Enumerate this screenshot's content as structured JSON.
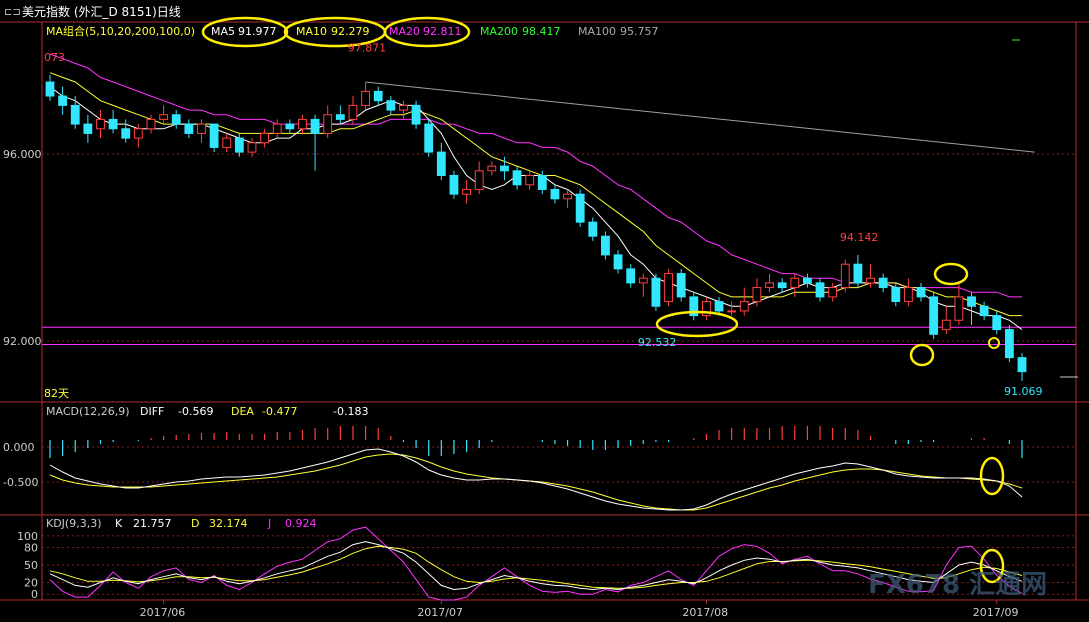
{
  "header": {
    "title": "美元指数 (外汇_D 8151)日线",
    "ma_label": "MA组合(5,10,20,200,100,0)",
    "ma_items": [
      {
        "name": "MA5",
        "value": "91.977",
        "color": "#ffffff"
      },
      {
        "name": "MA10",
        "value": "92.279",
        "color": "#ffff33"
      },
      {
        "name": "MA20",
        "value": "92.811",
        "color": "#ff33ff"
      },
      {
        "name": "MA200",
        "value": "98.417",
        "color": "#33ff33"
      },
      {
        "name": "MA100",
        "value": "95.757",
        "color": "#aaaaaa"
      }
    ]
  },
  "colors": {
    "up": "#ff4040",
    "down": "#33e6ff",
    "grid": "#8b1a1a",
    "ma5": "#ffffff",
    "ma10": "#ffff33",
    "ma20": "#ff33ff",
    "ma100": "#a0a0a0",
    "highlight": "#ffee00",
    "watermark": "#406080"
  },
  "chart_data": {
    "type": "candlestick",
    "ylim": [
      90.6,
      98.2
    ],
    "yticks": [
      {
        "value": 96.0,
        "label": "96.000"
      },
      {
        "value": 92.0,
        "label": "92.000"
      }
    ],
    "xticks": [
      {
        "index": 9,
        "label": "2017/06"
      },
      {
        "index": 31,
        "label": "2017/07"
      },
      {
        "index": 52,
        "label": "2017/08"
      },
      {
        "index": 75,
        "label": "2017/09"
      }
    ],
    "candles": [
      [
        97.3,
        97.0,
        97.45,
        96.9
      ],
      [
        97.0,
        96.8,
        97.2,
        96.6
      ],
      [
        96.8,
        96.4,
        97.0,
        96.3
      ],
      [
        96.4,
        96.2,
        96.6,
        96.0
      ],
      [
        96.3,
        96.5,
        96.7,
        96.1
      ],
      [
        96.5,
        96.3,
        96.7,
        96.2
      ],
      [
        96.3,
        96.1,
        96.5,
        96.0
      ],
      [
        96.1,
        96.3,
        96.4,
        95.9
      ],
      [
        96.3,
        96.5,
        96.6,
        96.2
      ],
      [
        96.5,
        96.6,
        96.8,
        96.4
      ],
      [
        96.6,
        96.4,
        96.7,
        96.3
      ],
      [
        96.4,
        96.2,
        96.5,
        96.1
      ],
      [
        96.2,
        96.4,
        96.5,
        96.0
      ],
      [
        96.4,
        95.9,
        96.4,
        95.8
      ],
      [
        95.9,
        96.1,
        96.2,
        95.8
      ],
      [
        96.1,
        95.8,
        96.2,
        95.7
      ],
      [
        95.8,
        96.0,
        96.1,
        95.7
      ],
      [
        96.0,
        96.2,
        96.3,
        95.9
      ],
      [
        96.2,
        96.4,
        96.5,
        96.1
      ],
      [
        96.4,
        96.3,
        96.5,
        96.2
      ],
      [
        96.3,
        96.5,
        96.6,
        96.2
      ],
      [
        96.5,
        96.2,
        96.6,
        95.4
      ],
      [
        96.2,
        96.6,
        96.8,
        96.1
      ],
      [
        96.6,
        96.5,
        96.8,
        96.4
      ],
      [
        96.5,
        96.8,
        97.0,
        96.4
      ],
      [
        96.8,
        97.1,
        97.3,
        96.7
      ],
      [
        97.1,
        96.9,
        97.2,
        96.8
      ],
      [
        96.9,
        96.7,
        97.0,
        96.6
      ],
      [
        96.7,
        96.8,
        96.9,
        96.5
      ],
      [
        96.8,
        96.4,
        96.9,
        96.3
      ],
      [
        96.4,
        95.8,
        96.5,
        95.7
      ],
      [
        95.8,
        95.3,
        96.0,
        95.2
      ],
      [
        95.3,
        94.9,
        95.4,
        94.8
      ],
      [
        94.9,
        95.0,
        95.2,
        94.7
      ],
      [
        95.0,
        95.4,
        95.6,
        94.9
      ],
      [
        95.4,
        95.5,
        95.6,
        95.3
      ],
      [
        95.5,
        95.4,
        95.7,
        95.2
      ],
      [
        95.4,
        95.1,
        95.5,
        95.0
      ],
      [
        95.1,
        95.3,
        95.4,
        95.0
      ],
      [
        95.3,
        95.0,
        95.4,
        94.9
      ],
      [
        95.0,
        94.8,
        95.1,
        94.7
      ],
      [
        94.8,
        94.9,
        95.0,
        94.6
      ],
      [
        94.9,
        94.3,
        95.0,
        94.2
      ],
      [
        94.3,
        94.0,
        94.4,
        93.9
      ],
      [
        94.0,
        93.6,
        94.1,
        93.5
      ],
      [
        93.6,
        93.3,
        93.7,
        93.2
      ],
      [
        93.3,
        93.0,
        93.4,
        92.9
      ],
      [
        93.0,
        93.1,
        93.2,
        92.7
      ],
      [
        93.1,
        92.5,
        93.2,
        92.4
      ],
      [
        92.6,
        93.2,
        93.3,
        92.5
      ],
      [
        93.2,
        92.7,
        93.3,
        92.6
      ],
      [
        92.7,
        92.3,
        92.8,
        92.2
      ],
      [
        92.3,
        92.6,
        92.7,
        92.2
      ],
      [
        92.6,
        92.4,
        92.7,
        92.3
      ],
      [
        92.4,
        92.4,
        92.6,
        92.3
      ],
      [
        92.4,
        92.6,
        92.9,
        92.3
      ],
      [
        92.6,
        92.9,
        93.1,
        92.5
      ],
      [
        92.9,
        93.0,
        93.2,
        92.8
      ],
      [
        93.0,
        92.9,
        93.1,
        92.8
      ],
      [
        92.9,
        93.1,
        93.2,
        92.7
      ],
      [
        93.1,
        93.0,
        93.2,
        92.9
      ],
      [
        93.0,
        92.7,
        93.1,
        92.6
      ],
      [
        92.7,
        92.9,
        93.0,
        92.6
      ],
      [
        92.9,
        93.4,
        93.5,
        92.8
      ],
      [
        93.4,
        93.0,
        93.6,
        92.9
      ],
      [
        93.0,
        93.1,
        93.4,
        92.9
      ],
      [
        93.1,
        92.9,
        93.2,
        92.8
      ],
      [
        92.9,
        92.6,
        93.0,
        92.5
      ],
      [
        92.6,
        92.9,
        93.1,
        92.5
      ],
      [
        92.9,
        92.7,
        93.0,
        92.6
      ],
      [
        92.7,
        91.9,
        92.8,
        91.8
      ],
      [
        92.0,
        92.2,
        92.5,
        91.9
      ],
      [
        92.2,
        92.7,
        93.0,
        92.1
      ],
      [
        92.7,
        92.5,
        92.8,
        92.1
      ],
      [
        92.5,
        92.3,
        92.6,
        92.2
      ],
      [
        92.3,
        92.0,
        92.4,
        91.9
      ],
      [
        92.0,
        91.4,
        92.1,
        91.3
      ],
      [
        91.4,
        91.1,
        91.5,
        90.9
      ]
    ],
    "ma5": [
      97.2,
      97.0,
      96.9,
      96.7,
      96.5,
      96.4,
      96.4,
      96.3,
      96.3,
      96.3,
      96.4,
      96.4,
      96.4,
      96.3,
      96.2,
      96.1,
      96.0,
      96.0,
      96.1,
      96.1,
      96.3,
      96.3,
      96.4,
      96.4,
      96.5,
      96.7,
      96.8,
      96.9,
      96.8,
      96.8,
      96.5,
      96.2,
      95.7,
      95.3,
      95.1,
      95.0,
      95.1,
      95.3,
      95.3,
      95.3,
      95.1,
      95.0,
      94.8,
      94.6,
      94.3,
      94.0,
      93.6,
      93.4,
      93.1,
      93.0,
      92.9,
      92.8,
      92.7,
      92.6,
      92.5,
      92.5,
      92.6,
      92.7,
      92.8,
      92.9,
      93.0,
      92.9,
      92.9,
      93.0,
      93.0,
      93.0,
      93.0,
      92.9,
      92.9,
      92.8,
      92.6,
      92.5,
      92.5,
      92.4,
      92.3,
      92.3,
      92.2,
      92.0
    ],
    "ma10": [
      97.5,
      97.4,
      97.3,
      97.1,
      96.9,
      96.8,
      96.7,
      96.6,
      96.5,
      96.4,
      96.4,
      96.4,
      96.4,
      96.4,
      96.3,
      96.2,
      96.2,
      96.2,
      96.2,
      96.2,
      96.2,
      96.2,
      96.2,
      96.3,
      96.3,
      96.4,
      96.5,
      96.6,
      96.6,
      96.7,
      96.6,
      96.5,
      96.3,
      96.1,
      95.9,
      95.7,
      95.6,
      95.5,
      95.4,
      95.3,
      95.3,
      95.2,
      95.1,
      94.9,
      94.7,
      94.5,
      94.3,
      94.1,
      93.8,
      93.6,
      93.4,
      93.2,
      93.0,
      92.8,
      92.7,
      92.7,
      92.7,
      92.7,
      92.7,
      92.8,
      92.8,
      92.8,
      92.8,
      92.9,
      92.9,
      93.0,
      93.0,
      93.0,
      92.9,
      92.9,
      92.8,
      92.7,
      92.7,
      92.6,
      92.5,
      92.4,
      92.3,
      92.3
    ],
    "ma20": [
      97.9,
      97.8,
      97.7,
      97.6,
      97.4,
      97.3,
      97.2,
      97.1,
      97.0,
      96.9,
      96.8,
      96.7,
      96.7,
      96.6,
      96.6,
      96.5,
      96.5,
      96.5,
      96.4,
      96.4,
      96.4,
      96.4,
      96.4,
      96.4,
      96.4,
      96.4,
      96.4,
      96.5,
      96.5,
      96.5,
      96.5,
      96.4,
      96.4,
      96.3,
      96.2,
      96.2,
      96.1,
      96.0,
      96.0,
      95.9,
      95.9,
      95.8,
      95.6,
      95.5,
      95.3,
      95.1,
      95.0,
      94.8,
      94.6,
      94.4,
      94.3,
      94.1,
      93.9,
      93.8,
      93.6,
      93.5,
      93.4,
      93.3,
      93.2,
      93.2,
      93.1,
      93.1,
      93.1,
      93.0,
      93.0,
      93.0,
      93.0,
      93.0,
      92.9,
      92.9,
      92.9,
      92.9,
      92.9,
      92.8,
      92.8,
      92.8,
      92.7,
      92.7
    ],
    "ma100_points": [
      [
        25,
        97.3
      ],
      [
        78,
        95.8
      ]
    ],
    "labels": [
      {
        "index": 0,
        "text": "073",
        "price": 97.75,
        "color": "#ff4040"
      },
      {
        "index": 25,
        "text": "97.871",
        "price": 97.95,
        "color": "#ff4040"
      },
      {
        "index": 48,
        "text": "92.532",
        "price": 91.65,
        "color": "#33e6ff"
      },
      {
        "index": 64,
        "text": "94.142",
        "price": 93.9,
        "color": "#ff4040"
      },
      {
        "index": 77,
        "text": "91.069",
        "price": 90.6,
        "color": "#33e6ff"
      }
    ],
    "hlines": [
      {
        "value": 92.05,
        "color": "#ff33ff"
      },
      {
        "value": 91.68,
        "color": "#ff33ff"
      }
    ],
    "bars_count_label": "82天",
    "macd": {
      "label": "MACD(12,26,9)",
      "diff_label": "DIFF",
      "diff_value": "-0.569",
      "dea_label": "DEA",
      "dea_value": "-0.477",
      "hist_value": "-0.183",
      "ylim": [
        -0.75,
        0.2
      ],
      "ytick_labels": [
        {
          "value": 0.0,
          "label": "0.000"
        },
        {
          "value": -0.5,
          "label": "-0.500"
        }
      ],
      "diff": [
        -0.25,
        -0.32,
        -0.38,
        -0.41,
        -0.44,
        -0.46,
        -0.48,
        -0.48,
        -0.46,
        -0.44,
        -0.42,
        -0.41,
        -0.39,
        -0.38,
        -0.37,
        -0.37,
        -0.36,
        -0.35,
        -0.33,
        -0.31,
        -0.28,
        -0.25,
        -0.22,
        -0.18,
        -0.14,
        -0.1,
        -0.09,
        -0.12,
        -0.16,
        -0.22,
        -0.3,
        -0.35,
        -0.38,
        -0.4,
        -0.4,
        -0.39,
        -0.39,
        -0.4,
        -0.41,
        -0.43,
        -0.46,
        -0.49,
        -0.53,
        -0.57,
        -0.61,
        -0.64,
        -0.66,
        -0.68,
        -0.69,
        -0.7,
        -0.7,
        -0.69,
        -0.65,
        -0.59,
        -0.54,
        -0.5,
        -0.46,
        -0.42,
        -0.38,
        -0.34,
        -0.31,
        -0.28,
        -0.26,
        -0.23,
        -0.24,
        -0.27,
        -0.3,
        -0.34,
        -0.36,
        -0.37,
        -0.38,
        -0.38,
        -0.38,
        -0.38,
        -0.39,
        -0.41,
        -0.46,
        -0.57
      ],
      "dea": [
        -0.35,
        -0.4,
        -0.43,
        -0.45,
        -0.46,
        -0.47,
        -0.47,
        -0.47,
        -0.47,
        -0.46,
        -0.45,
        -0.44,
        -0.43,
        -0.42,
        -0.41,
        -0.4,
        -0.39,
        -0.38,
        -0.37,
        -0.35,
        -0.33,
        -0.31,
        -0.28,
        -0.25,
        -0.21,
        -0.17,
        -0.15,
        -0.14,
        -0.15,
        -0.18,
        -0.22,
        -0.27,
        -0.31,
        -0.34,
        -0.36,
        -0.38,
        -0.39,
        -0.4,
        -0.41,
        -0.42,
        -0.44,
        -0.46,
        -0.49,
        -0.52,
        -0.56,
        -0.6,
        -0.63,
        -0.66,
        -0.68,
        -0.69,
        -0.7,
        -0.7,
        -0.68,
        -0.64,
        -0.6,
        -0.56,
        -0.52,
        -0.48,
        -0.45,
        -0.41,
        -0.38,
        -0.35,
        -0.32,
        -0.3,
        -0.29,
        -0.29,
        -0.3,
        -0.32,
        -0.34,
        -0.36,
        -0.37,
        -0.38,
        -0.38,
        -0.39,
        -0.4,
        -0.41,
        -0.44,
        -0.48
      ],
      "hist": [
        -0.18,
        -0.16,
        -0.12,
        -0.08,
        -0.04,
        -0.02,
        0.0,
        -0.01,
        0.02,
        0.04,
        0.05,
        0.06,
        0.07,
        0.07,
        0.08,
        0.06,
        0.06,
        0.06,
        0.08,
        0.08,
        0.1,
        0.12,
        0.12,
        0.14,
        0.14,
        0.14,
        0.12,
        0.04,
        -0.02,
        -0.08,
        -0.16,
        -0.16,
        -0.14,
        -0.12,
        -0.08,
        -0.02,
        0.0,
        0.0,
        0.0,
        -0.02,
        -0.04,
        -0.06,
        -0.08,
        -0.1,
        -0.1,
        -0.08,
        -0.06,
        -0.04,
        -0.02,
        -0.02,
        0.0,
        0.02,
        0.06,
        0.1,
        0.12,
        0.12,
        0.12,
        0.12,
        0.14,
        0.14,
        0.14,
        0.14,
        0.12,
        0.12,
        0.1,
        0.04,
        0.0,
        -0.04,
        -0.04,
        -0.02,
        -0.02,
        0.0,
        0.0,
        0.02,
        0.02,
        0.0,
        -0.04,
        -0.18
      ]
    },
    "kdj": {
      "label": "KDJ(9,3,3)",
      "k_label": "K",
      "k_value": "21.757",
      "d_label": "D",
      "d_value": "32.174",
      "j_label": "J",
      "j_value": "0.924",
      "ylim": [
        -10,
        110
      ],
      "ytick_labels": [
        {
          "value": 100,
          "label": "100"
        },
        {
          "value": 80,
          "label": "80"
        },
        {
          "value": 50,
          "label": "50"
        },
        {
          "value": 20,
          "label": "20"
        },
        {
          "value": 0,
          "label": "0"
        }
      ],
      "k": [
        35,
        25,
        15,
        12,
        20,
        28,
        22,
        18,
        25,
        30,
        35,
        28,
        25,
        30,
        22,
        18,
        22,
        28,
        35,
        40,
        45,
        55,
        65,
        72,
        85,
        90,
        85,
        78,
        70,
        55,
        35,
        15,
        8,
        10,
        18,
        25,
        32,
        28,
        22,
        18,
        15,
        14,
        10,
        8,
        10,
        8,
        12,
        15,
        20,
        25,
        22,
        18,
        28,
        40,
        50,
        58,
        62,
        60,
        55,
        58,
        60,
        55,
        50,
        48,
        45,
        40,
        35,
        30,
        25,
        22,
        20,
        35,
        50,
        55,
        50,
        40,
        30,
        22
      ],
      "d": [
        40,
        35,
        28,
        22,
        22,
        24,
        23,
        21,
        23,
        26,
        30,
        30,
        28,
        29,
        26,
        23,
        23,
        25,
        29,
        33,
        38,
        45,
        52,
        60,
        70,
        78,
        82,
        80,
        77,
        70,
        55,
        42,
        30,
        22,
        20,
        22,
        26,
        28,
        26,
        24,
        21,
        18,
        15,
        12,
        11,
        10,
        10,
        12,
        15,
        18,
        20,
        20,
        22,
        28,
        36,
        44,
        52,
        56,
        56,
        57,
        58,
        57,
        55,
        52,
        50,
        47,
        43,
        39,
        35,
        31,
        27,
        28,
        35,
        42,
        46,
        44,
        38,
        32
      ],
      "j": [
        25,
        5,
        -5,
        -5,
        15,
        38,
        20,
        10,
        30,
        40,
        45,
        25,
        20,
        32,
        15,
        8,
        20,
        35,
        48,
        55,
        60,
        75,
        90,
        95,
        110,
        115,
        95,
        75,
        55,
        25,
        -5,
        -10,
        -10,
        -5,
        15,
        30,
        45,
        30,
        15,
        5,
        3,
        5,
        0,
        0,
        8,
        4,
        15,
        20,
        30,
        40,
        25,
        15,
        40,
        65,
        78,
        85,
        82,
        70,
        52,
        60,
        65,
        52,
        40,
        40,
        35,
        26,
        20,
        12,
        5,
        4,
        6,
        50,
        80,
        82,
        60,
        32,
        14,
        1
      ]
    }
  },
  "watermark": "FX678 汇通网"
}
